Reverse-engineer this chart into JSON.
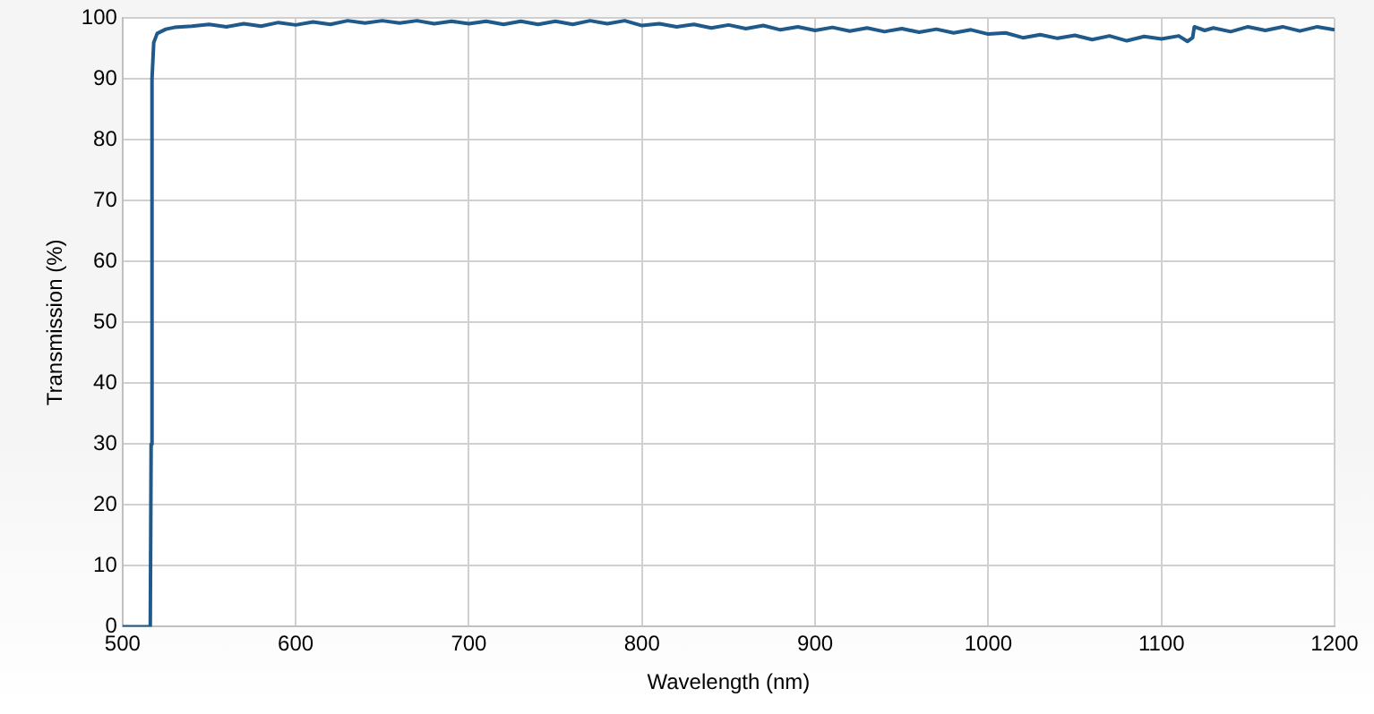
{
  "chart_data": {
    "type": "line",
    "xlabel": "Wavelength (nm)",
    "ylabel": "Transmission (%)",
    "x": [
      500,
      516,
      516.5,
      517,
      518,
      520,
      525,
      530,
      540,
      550,
      560,
      570,
      580,
      590,
      600,
      610,
      620,
      630,
      640,
      650,
      660,
      670,
      680,
      690,
      700,
      710,
      720,
      730,
      740,
      750,
      760,
      770,
      780,
      790,
      800,
      810,
      820,
      830,
      840,
      850,
      860,
      870,
      880,
      890,
      900,
      910,
      920,
      930,
      940,
      950,
      960,
      970,
      980,
      990,
      1000,
      1010,
      1020,
      1030,
      1040,
      1050,
      1060,
      1070,
      1080,
      1090,
      1100,
      1110,
      1115,
      1118,
      1119,
      1125,
      1130,
      1140,
      1150,
      1160,
      1170,
      1180,
      1190,
      1200
    ],
    "series": [
      {
        "color": "#1f5a8a",
        "values": [
          0,
          0,
          30,
          90,
          96,
          97.5,
          98.2,
          98.5,
          98.7,
          99.0,
          98.6,
          99.1,
          98.7,
          99.3,
          98.9,
          99.4,
          99.0,
          99.6,
          99.2,
          99.6,
          99.2,
          99.6,
          99.1,
          99.5,
          99.1,
          99.5,
          99.0,
          99.5,
          99.0,
          99.5,
          99.0,
          99.6,
          99.1,
          99.6,
          98.8,
          99.1,
          98.6,
          99.0,
          98.4,
          98.9,
          98.3,
          98.8,
          98.1,
          98.6,
          98.0,
          98.5,
          97.9,
          98.4,
          97.8,
          98.3,
          97.7,
          98.2,
          97.6,
          98.1,
          97.4,
          97.6,
          96.8,
          97.3,
          96.7,
          97.2,
          96.5,
          97.1,
          96.3,
          97.0,
          96.6,
          97.1,
          96.2,
          96.8,
          98.6,
          98.0,
          98.4,
          97.8,
          98.6,
          98.0,
          98.6,
          97.9,
          98.6,
          98.1
        ]
      }
    ],
    "xlim": [
      500,
      1200
    ],
    "xticks": [
      500,
      600,
      700,
      800,
      900,
      1000,
      1100,
      1200
    ],
    "ylim": [
      0,
      100
    ],
    "yticks": [
      0,
      10,
      20,
      30,
      40,
      50,
      60,
      70,
      80,
      90,
      100
    ],
    "grid": true,
    "legend": false,
    "marker": "none",
    "line_style": "solid"
  }
}
